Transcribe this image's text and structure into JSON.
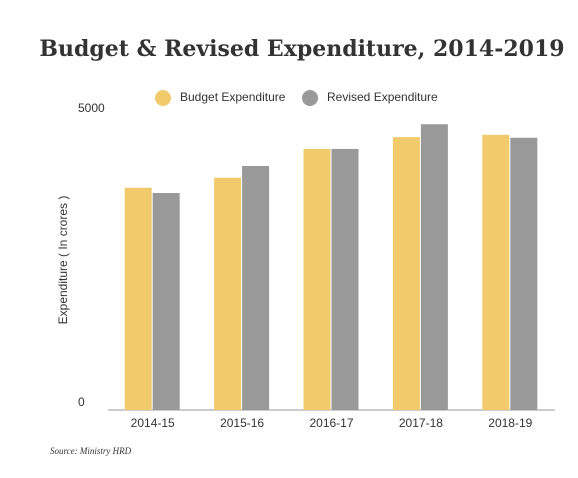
{
  "chart_data": {
    "type": "bar",
    "title": "Budget & Revised Expenditure, 2014-2019",
    "y_label": "Expenditure ( In crores )",
    "source": "Source: Ministry HRD",
    "categories": [
      "2014-15",
      "2015-16",
      "2016-17",
      "2017-18",
      "2018-19"
    ],
    "series": [
      {
        "name": "Budget Expenditure",
        "color": "#f0ca6b",
        "values": [
          3780,
          3950,
          4440,
          4640,
          4680
        ]
      },
      {
        "name": "Revised Expenditure",
        "color": "#999999",
        "values": [
          3690,
          4150,
          4440,
          4860,
          4630
        ]
      }
    ],
    "ylim": [
      0,
      5000
    ],
    "yticks": [
      0,
      5000
    ],
    "legend": "top"
  }
}
